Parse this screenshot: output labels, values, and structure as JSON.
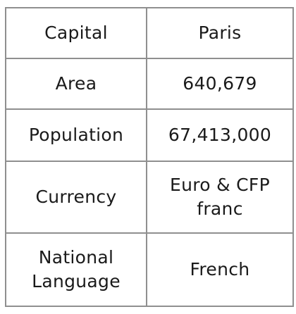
{
  "table": {
    "rows": [
      {
        "label": "Capital",
        "value": "Paris"
      },
      {
        "label": "Area",
        "value": "640,679"
      },
      {
        "label": "Population",
        "value": "67,413,000"
      },
      {
        "label": "Currency",
        "value": "Euro & CFP franc"
      },
      {
        "label": "National Language",
        "value": "French"
      }
    ]
  }
}
